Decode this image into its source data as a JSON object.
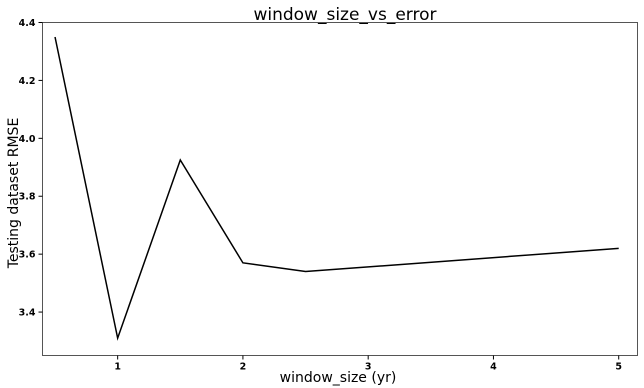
{
  "chart_data": {
    "type": "line",
    "title": "window_size_vs_error",
    "xlabel": "window_size (yr)",
    "ylabel": "Testing dataset RMSE",
    "xlim": [
      0.4,
      5.15
    ],
    "ylim": [
      3.25,
      4.4
    ],
    "xticks": [
      1,
      2,
      3,
      4,
      5
    ],
    "yticks": [
      3.4,
      3.6,
      3.8,
      4.0,
      4.2,
      4.4
    ],
    "ytick_labels": [
      "3.4",
      "3.6",
      "3.8",
      "4.0",
      "4.2",
      "4.4"
    ],
    "grid": false,
    "series": [
      {
        "x": [
          0.5,
          1,
          1.5,
          2,
          2.5,
          5
        ],
        "y": [
          4.35,
          3.31,
          3.925,
          3.57,
          3.54,
          3.62
        ],
        "color": "#000000"
      }
    ]
  }
}
